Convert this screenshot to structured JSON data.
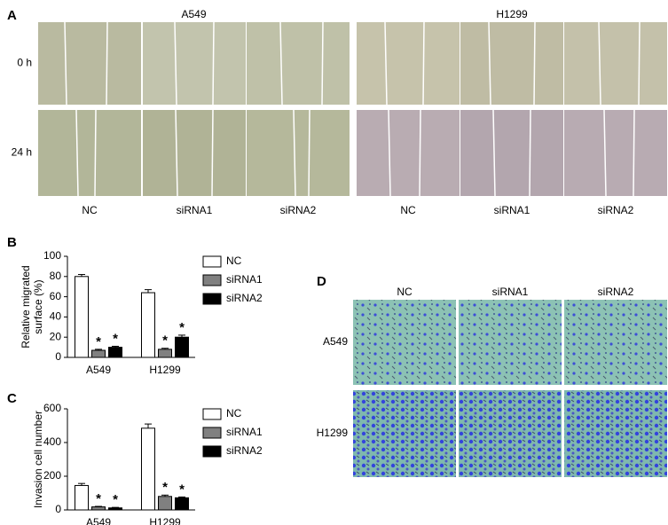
{
  "panel_labels": [
    "A",
    "B",
    "C",
    "D"
  ],
  "panel_a": {
    "cell_lines": [
      "A549",
      "H1299"
    ],
    "time_points": [
      "0 h",
      "24 h"
    ],
    "conditions": [
      [
        "NC",
        "siRNA1",
        "siRNA2"
      ],
      [
        "NC",
        "siRNA1",
        "siRNA2"
      ]
    ]
  },
  "chart_data": [
    {
      "type": "bar",
      "ylabel": [
        "Relative migrated",
        "surface (%)"
      ],
      "categories": [
        "A549",
        "H1299"
      ],
      "series": [
        {
          "name": "NC",
          "color": "#ffffff",
          "values": [
            80,
            64
          ],
          "errors": [
            2,
            3
          ]
        },
        {
          "name": "siRNA1",
          "color": "#808080",
          "values": [
            7,
            8
          ],
          "errors": [
            1,
            1
          ],
          "significance": [
            "*",
            "*"
          ]
        },
        {
          "name": "siRNA2",
          "color": "#000000",
          "values": [
            10,
            20
          ],
          "errors": [
            1,
            2
          ],
          "significance": [
            "*",
            "*"
          ]
        }
      ],
      "ylim": [
        0,
        100
      ],
      "yticks": [
        0,
        20,
        40,
        60,
        80,
        100
      ]
    },
    {
      "type": "bar",
      "ylabel": [
        "Invasion cell number"
      ],
      "categories": [
        "A549",
        "H1299"
      ],
      "series": [
        {
          "name": "NC",
          "color": "#ffffff",
          "values": [
            145,
            485
          ],
          "errors": [
            12,
            25
          ]
        },
        {
          "name": "siRNA1",
          "color": "#808080",
          "values": [
            18,
            80
          ],
          "errors": [
            3,
            8
          ],
          "significance": [
            "*",
            "*"
          ]
        },
        {
          "name": "siRNA2",
          "color": "#000000",
          "values": [
            12,
            72
          ],
          "errors": [
            3,
            5
          ],
          "significance": [
            "*",
            "*"
          ]
        }
      ],
      "ylim": [
        0,
        600
      ],
      "yticks": [
        0,
        200,
        400,
        600
      ]
    }
  ],
  "panel_d": {
    "conditions": [
      "NC",
      "siRNA1",
      "siRNA2"
    ],
    "cell_lines": [
      "A549",
      "H1299"
    ]
  }
}
